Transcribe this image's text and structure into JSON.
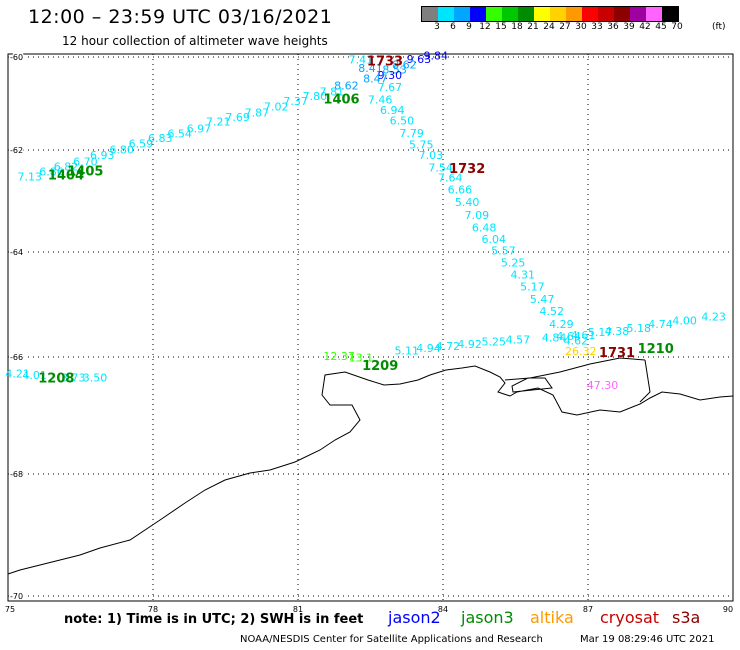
{
  "header": {
    "title": "12:00 – 23:59 UTC 03/16/2021",
    "subtitle": "12 hour collection of altimeter wave heights"
  },
  "color_scale": {
    "unit": "(ft)",
    "swatches": [
      {
        "label": "3",
        "color": "#7f7f7f"
      },
      {
        "label": "6",
        "color": "#00e5ff"
      },
      {
        "label": "9",
        "color": "#00a6ff"
      },
      {
        "label": "12",
        "color": "#0000ff"
      },
      {
        "label": "15",
        "color": "#33ff00"
      },
      {
        "label": "18",
        "color": "#00c800"
      },
      {
        "label": "21",
        "color": "#008c00"
      },
      {
        "label": "24",
        "color": "#ffff00"
      },
      {
        "label": "27",
        "color": "#ffd200"
      },
      {
        "label": "30",
        "color": "#ff9900"
      },
      {
        "label": "33",
        "color": "#ff0000"
      },
      {
        "label": "36",
        "color": "#c80000"
      },
      {
        "label": "39",
        "color": "#8c0000"
      },
      {
        "label": "42",
        "color": "#a000a0"
      },
      {
        "label": "45",
        "color": "#ff64ff"
      },
      {
        "label": "70",
        "color": "#000000"
      }
    ]
  },
  "map": {
    "lon_ticks": [
      "75",
      "78",
      "81",
      "84",
      "87",
      "90"
    ],
    "lat_ticks": [
      "-60",
      "-62",
      "-64",
      "-66",
      "-68",
      "-70"
    ],
    "track_labels": [
      {
        "text": "1733",
        "lon": 82.8,
        "lat": -60.18,
        "color": "#8c0000"
      },
      {
        "text": "1406",
        "lon": 81.9,
        "lat": -61.0,
        "color": "#008c00"
      },
      {
        "text": "1405",
        "lon": 76.6,
        "lat": -62.5,
        "color": "#008c00"
      },
      {
        "text": "1404",
        "lon": 76.2,
        "lat": -62.58,
        "color": "#008c00"
      },
      {
        "text": "1732",
        "lon": 84.5,
        "lat": -62.45,
        "color": "#8c0000"
      },
      {
        "text": "1731",
        "lon": 87.6,
        "lat": -66.0,
        "color": "#8c0000"
      },
      {
        "text": "1210",
        "lon": 88.4,
        "lat": -65.92,
        "color": "#008c00"
      },
      {
        "text": "1209",
        "lon": 82.7,
        "lat": -66.22,
        "color": "#008c00"
      },
      {
        "text": "1208",
        "lon": 76.0,
        "lat": -66.44,
        "color": "#008c00"
      }
    ],
    "observations": [
      {
        "v": "9.84",
        "lon": 83.85,
        "lat": -60.05,
        "color": "#0000ff"
      },
      {
        "v": "9.63",
        "lon": 83.5,
        "lat": -60.13,
        "color": "#0000ff"
      },
      {
        "v": "7.41",
        "lon": 82.3,
        "lat": -60.14,
        "color": "#00e5ff"
      },
      {
        "v": "8.62",
        "lon": 83.2,
        "lat": -60.25,
        "color": "#00a6ff"
      },
      {
        "v": "8.41",
        "lon": 82.5,
        "lat": -60.32,
        "color": "#00a6ff"
      },
      {
        "v": "8.53",
        "lon": 83.0,
        "lat": -60.35,
        "color": "#00a6ff"
      },
      {
        "v": "9.30",
        "lon": 82.9,
        "lat": -60.47,
        "color": "#0000ff"
      },
      {
        "v": "8.47",
        "lon": 82.6,
        "lat": -60.55,
        "color": "#00a6ff"
      },
      {
        "v": "7.67",
        "lon": 82.9,
        "lat": -60.73,
        "color": "#00e5ff"
      },
      {
        "v": "8.62",
        "lon": 82.0,
        "lat": -60.7,
        "color": "#00a6ff"
      },
      {
        "v": "7.81",
        "lon": 81.7,
        "lat": -60.83,
        "color": "#00e5ff"
      },
      {
        "v": "7.80",
        "lon": 81.35,
        "lat": -60.92,
        "color": "#00e5ff"
      },
      {
        "v": "7.37",
        "lon": 80.95,
        "lat": -61.03,
        "color": "#00e5ff"
      },
      {
        "v": "7.02",
        "lon": 80.55,
        "lat": -61.15,
        "color": "#00e5ff"
      },
      {
        "v": "7.46",
        "lon": 82.7,
        "lat": -61.0,
        "color": "#00e5ff"
      },
      {
        "v": "6.94",
        "lon": 82.95,
        "lat": -61.23,
        "color": "#00e5ff"
      },
      {
        "v": "6.50",
        "lon": 83.15,
        "lat": -61.45,
        "color": "#00e5ff"
      },
      {
        "v": "7.87",
        "lon": 80.15,
        "lat": -61.28,
        "color": "#00e5ff"
      },
      {
        "v": "7.69",
        "lon": 79.75,
        "lat": -61.38,
        "color": "#00e5ff"
      },
      {
        "v": "7.21",
        "lon": 79.35,
        "lat": -61.47,
        "color": "#00e5ff"
      },
      {
        "v": "6.97",
        "lon": 78.95,
        "lat": -61.62,
        "color": "#00e5ff"
      },
      {
        "v": "6.54",
        "lon": 78.55,
        "lat": -61.73,
        "color": "#00e5ff"
      },
      {
        "v": "6.83",
        "lon": 78.15,
        "lat": -61.83,
        "color": "#00e5ff"
      },
      {
        "v": "6.59",
        "lon": 77.75,
        "lat": -61.95,
        "color": "#00e5ff"
      },
      {
        "v": "6.80",
        "lon": 77.35,
        "lat": -62.07,
        "color": "#00e5ff"
      },
      {
        "v": "6.93",
        "lon": 76.95,
        "lat": -62.18,
        "color": "#00e5ff"
      },
      {
        "v": "6.70",
        "lon": 76.6,
        "lat": -62.3,
        "color": "#00e5ff"
      },
      {
        "v": "6.82",
        "lon": 76.2,
        "lat": -62.4,
        "color": "#00e5ff"
      },
      {
        "v": "6.86",
        "lon": 75.9,
        "lat": -62.5,
        "color": "#00e5ff"
      },
      {
        "v": "7.13",
        "lon": 75.45,
        "lat": -62.6,
        "color": "#00e5ff"
      },
      {
        "v": "7.79",
        "lon": 83.35,
        "lat": -61.72,
        "color": "#00e5ff"
      },
      {
        "v": "5.75",
        "lon": 83.55,
        "lat": -61.97,
        "color": "#00e5ff"
      },
      {
        "v": "7.03",
        "lon": 83.75,
        "lat": -62.18,
        "color": "#00e5ff"
      },
      {
        "v": "7.54",
        "lon": 83.95,
        "lat": -62.42,
        "color": "#00e5ff"
      },
      {
        "v": "7.64",
        "lon": 84.15,
        "lat": -62.62,
        "color": "#00e5ff"
      },
      {
        "v": "6.66",
        "lon": 84.35,
        "lat": -62.85,
        "color": "#00e5ff"
      },
      {
        "v": "5.40",
        "lon": 84.5,
        "lat": -63.1,
        "color": "#00e5ff"
      },
      {
        "v": "7.09",
        "lon": 84.7,
        "lat": -63.35,
        "color": "#00e5ff"
      },
      {
        "v": "6.48",
        "lon": 84.85,
        "lat": -63.6,
        "color": "#00e5ff"
      },
      {
        "v": "6.04",
        "lon": 85.05,
        "lat": -63.82,
        "color": "#00e5ff"
      },
      {
        "v": "5.57",
        "lon": 85.25,
        "lat": -64.05,
        "color": "#00e5ff"
      },
      {
        "v": "5.25",
        "lon": 85.45,
        "lat": -64.28,
        "color": "#00e5ff"
      },
      {
        "v": "4.31",
        "lon": 85.65,
        "lat": -64.5,
        "color": "#00e5ff"
      },
      {
        "v": "5.17",
        "lon": 85.85,
        "lat": -64.73,
        "color": "#00e5ff"
      },
      {
        "v": "5.47",
        "lon": 86.05,
        "lat": -64.97,
        "color": "#00e5ff"
      },
      {
        "v": "4.52",
        "lon": 86.25,
        "lat": -65.2,
        "color": "#00e5ff"
      },
      {
        "v": "4.29",
        "lon": 86.45,
        "lat": -65.45,
        "color": "#00e5ff"
      },
      {
        "v": "4.84",
        "lon": 86.3,
        "lat": -65.7,
        "color": "#00e5ff"
      },
      {
        "v": "4.64",
        "lon": 86.6,
        "lat": -65.68,
        "color": "#00e5ff"
      },
      {
        "v": "4.61",
        "lon": 86.9,
        "lat": -65.66,
        "color": "#00e5ff"
      },
      {
        "v": "4.62",
        "lon": 86.75,
        "lat": -65.76,
        "color": "#00e5ff"
      },
      {
        "v": "5.17",
        "lon": 87.25,
        "lat": -65.6,
        "color": "#00e5ff"
      },
      {
        "v": "4.38",
        "lon": 87.6,
        "lat": -65.58,
        "color": "#00e5ff"
      },
      {
        "v": "5.18",
        "lon": 88.05,
        "lat": -65.52,
        "color": "#00e5ff"
      },
      {
        "v": "4.74",
        "lon": 88.5,
        "lat": -65.45,
        "color": "#00e5ff"
      },
      {
        "v": "4.00",
        "lon": 89.0,
        "lat": -65.38,
        "color": "#00e5ff"
      },
      {
        "v": "4.23",
        "lon": 89.6,
        "lat": -65.3,
        "color": "#00e5ff"
      },
      {
        "v": "26.32",
        "lon": 86.85,
        "lat": -65.96,
        "color": "#ffd200"
      },
      {
        "v": "47.30",
        "lon": 87.3,
        "lat": -66.55,
        "color": "#ff64ff"
      },
      {
        "v": "12.37",
        "lon": 81.85,
        "lat": -66.05,
        "color": "#33ff00"
      },
      {
        "v": "13.1",
        "lon": 82.3,
        "lat": -66.08,
        "color": "#33ff00"
      },
      {
        "v": "5.11",
        "lon": 83.25,
        "lat": -65.95,
        "color": "#00e5ff"
      },
      {
        "v": "4.94",
        "lon": 83.7,
        "lat": -65.9,
        "color": "#00e5ff"
      },
      {
        "v": "4.72",
        "lon": 84.1,
        "lat": -65.87,
        "color": "#00e5ff"
      },
      {
        "v": "4.92",
        "lon": 84.55,
        "lat": -65.83,
        "color": "#00e5ff"
      },
      {
        "v": "5.25",
        "lon": 85.05,
        "lat": -65.78,
        "color": "#00e5ff"
      },
      {
        "v": "4.57",
        "lon": 85.55,
        "lat": -65.74,
        "color": "#00e5ff"
      },
      {
        "v": "4.21",
        "lon": 75.2,
        "lat": -66.35,
        "color": "#00e5ff"
      },
      {
        "v": "4.01",
        "lon": 75.55,
        "lat": -66.38,
        "color": "#00e5ff"
      },
      {
        "v": "3.73",
        "lon": 76.35,
        "lat": -66.42,
        "color": "#00e5ff"
      },
      {
        "v": "3.50",
        "lon": 76.8,
        "lat": -66.42,
        "color": "#00e5ff"
      }
    ]
  },
  "legend": {
    "note": "note:  1) Time is in UTC;  2) SWH is in feet",
    "satellites": [
      {
        "name": "jason2",
        "color": "#0000ff"
      },
      {
        "name": "jason3",
        "color": "#008c00"
      },
      {
        "name": "altika",
        "color": "#ff9900"
      },
      {
        "name": "cryosat",
        "color": "#c80000"
      },
      {
        "name": "s3a",
        "color": "#8c0000"
      }
    ]
  },
  "footer": {
    "credit": "NOAA/NESDIS Center for Satellite Applications and Research",
    "timestamp": "Mar 19 08:29:46 UTC 2021"
  }
}
